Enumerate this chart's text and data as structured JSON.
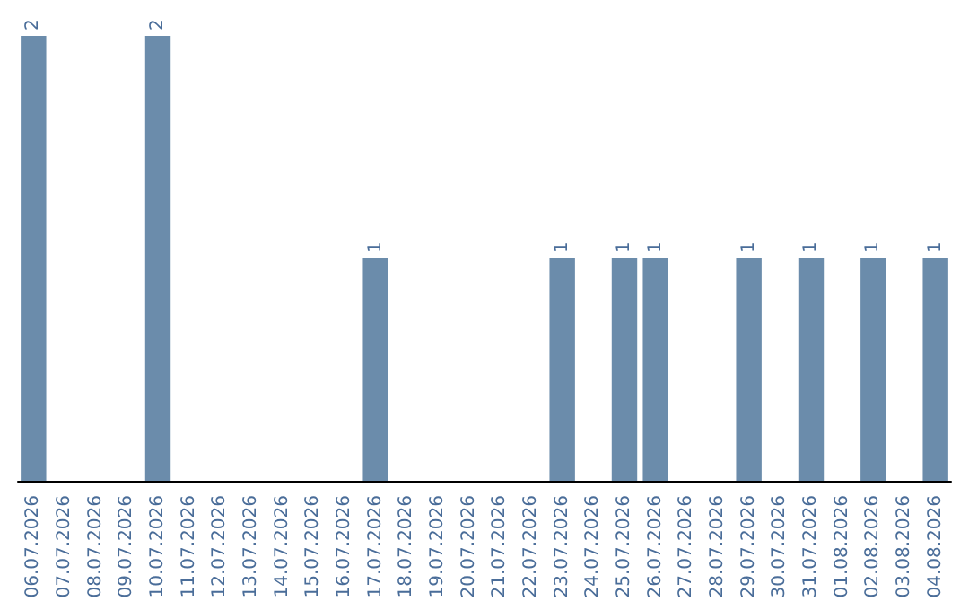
{
  "chart_data": {
    "type": "bar",
    "categories": [
      "06.07.2026",
      "07.07.2026",
      "08.07.2026",
      "09.07.2026",
      "10.07.2026",
      "11.07.2026",
      "12.07.2026",
      "13.07.2026",
      "14.07.2026",
      "15.07.2026",
      "16.07.2026",
      "17.07.2026",
      "18.07.2026",
      "19.07.2026",
      "20.07.2026",
      "21.07.2026",
      "22.07.2026",
      "23.07.2026",
      "24.07.2026",
      "25.07.2026",
      "26.07.2026",
      "27.07.2026",
      "28.07.2026",
      "29.07.2026",
      "30.07.2026",
      "31.07.2026",
      "01.08.2026",
      "02.08.2026",
      "03.08.2026",
      "04.08.2026"
    ],
    "values": [
      2,
      0,
      0,
      0,
      2,
      0,
      0,
      0,
      0,
      0,
      0,
      1,
      0,
      0,
      0,
      0,
      0,
      1,
      0,
      1,
      1,
      0,
      0,
      1,
      0,
      1,
      0,
      1,
      0,
      1
    ],
    "value_labels": [
      "2",
      null,
      null,
      null,
      "2",
      null,
      null,
      null,
      null,
      null,
      null,
      "1",
      null,
      null,
      null,
      null,
      null,
      "1",
      null,
      "1",
      "1",
      null,
      null,
      "1",
      null,
      "1",
      null,
      "1",
      null,
      "1"
    ],
    "color": "#6b8cab"
  }
}
